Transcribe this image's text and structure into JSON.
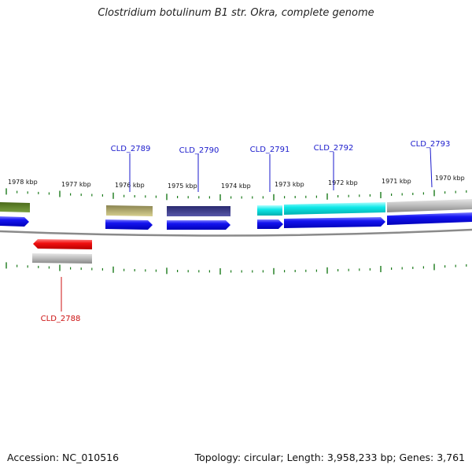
{
  "title": "Clostridium botulinum B1 str. Okra, complete genome",
  "footer": {
    "accession": "Accession: NC_010516",
    "summary": "Topology: circular; Length: 3,958,233 bp; Genes: 3,761"
  },
  "colors": {
    "label_blue": "#1a1acc",
    "label_red": "#cc1111",
    "tick_green": "#1a7a1a",
    "cds_blue": "#1010ee",
    "cds_red": "#ee1010",
    "backbone": "#888888"
  },
  "kbp_labels": [
    "1978 kbp",
    "1977 kbp",
    "1976 kbp",
    "1975 kbp",
    "1974 kbp",
    "1973 kbp",
    "1972 kbp",
    "1971 kbp",
    "1970 kbp"
  ],
  "gene_labels": [
    {
      "text": "CLD_2789",
      "color": "#1a1acc"
    },
    {
      "text": "CLD_2790",
      "color": "#1a1acc"
    },
    {
      "text": "CLD_2791",
      "color": "#1a1acc"
    },
    {
      "text": "CLD_2792",
      "color": "#1a1acc"
    },
    {
      "text": "CLD_2793",
      "color": "#1a1acc"
    },
    {
      "text": "CLD_2788",
      "color": "#cc1111"
    }
  ]
}
